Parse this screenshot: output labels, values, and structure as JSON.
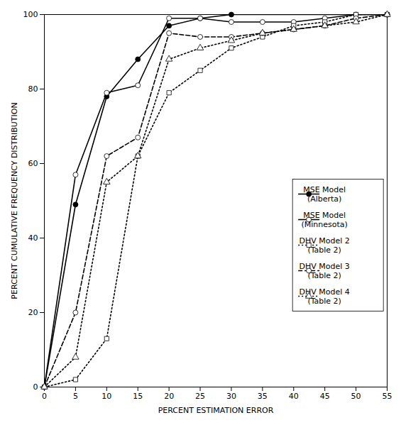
{
  "chart_data": {
    "type": "line",
    "xlabel": "PERCENT ESTIMATION ERROR",
    "ylabel": "PERCENT CUMULATIVE FREQUENCY DISTRIBUTION",
    "xlim": [
      0,
      55
    ],
    "ylim": [
      0,
      100
    ],
    "xticks": [
      0,
      5,
      10,
      15,
      20,
      25,
      30,
      35,
      40,
      45,
      50,
      55
    ],
    "yticks": [
      0,
      20,
      40,
      60,
      80,
      100
    ],
    "grid": false,
    "legend": "right",
    "series": [
      {
        "name": "MSE Model\n(Alberta)",
        "color": "#000000",
        "line_style": "solid",
        "marker": "filled circle",
        "x": [
          0,
          5,
          10,
          15,
          20,
          25,
          30,
          55
        ],
        "values": [
          0,
          49,
          78,
          88,
          97,
          99,
          100,
          100
        ]
      },
      {
        "name": "MSE Model\n(Minnesota)",
        "color": "#000000",
        "line_style": "solid",
        "marker": "open circle",
        "x": [
          0,
          5,
          10,
          15,
          20,
          25,
          30,
          35,
          40,
          45,
          50,
          55
        ],
        "values": [
          0,
          57,
          79,
          81,
          99,
          99,
          98,
          98,
          98,
          99,
          100,
          100
        ]
      },
      {
        "name": "DHV Model 2\n(Table 2)",
        "color": "#000000",
        "line_style": "dotted",
        "marker": "open square",
        "x": [
          0,
          5,
          10,
          15,
          20,
          25,
          30,
          35,
          40,
          45,
          50,
          55
        ],
        "values": [
          0,
          2,
          13,
          62,
          79,
          85,
          91,
          94,
          97,
          98,
          100,
          100
        ]
      },
      {
        "name": "DHV Model 3\n(Table 2)",
        "color": "#000000",
        "line_style": "dashed",
        "marker": "open circle",
        "x": [
          0,
          5,
          10,
          15,
          20,
          25,
          30,
          35,
          40,
          45,
          50,
          55
        ],
        "values": [
          0,
          20,
          62,
          67,
          95,
          94,
          94,
          95,
          96,
          97,
          99,
          100
        ]
      },
      {
        "name": "DHV Model 4\n(Table 2)",
        "color": "#000000",
        "line_style": "dotted",
        "marker": "open triangle",
        "x": [
          0,
          5,
          10,
          15,
          20,
          25,
          30,
          35,
          40,
          45,
          50,
          55
        ],
        "values": [
          0,
          8,
          55,
          62,
          88,
          91,
          93,
          95,
          96,
          97,
          98,
          100
        ]
      }
    ]
  }
}
